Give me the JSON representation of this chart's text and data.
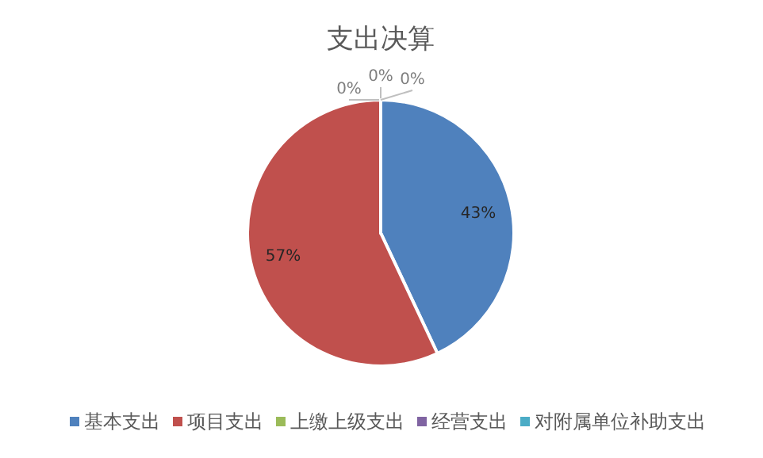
{
  "chart_data": {
    "type": "pie",
    "title": "支出决算",
    "categories": [
      "基本支出",
      "项目支出",
      "上缴上级支出",
      "经营支出",
      "对附属单位补助支出"
    ],
    "values": [
      43,
      57,
      0,
      0,
      0
    ],
    "colors": [
      "#4f81bd",
      "#c0504d",
      "#9bbb59",
      "#8064a2",
      "#4bacc6"
    ],
    "value_labels": [
      "43%",
      "57%",
      "0%",
      "0%",
      "0%"
    ],
    "legend": "bottom"
  }
}
